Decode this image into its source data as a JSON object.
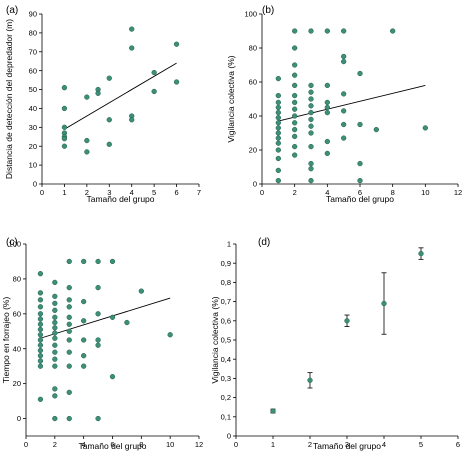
{
  "colors": {
    "point": "#3e8f78",
    "axis": "#000000",
    "line": "#000000"
  },
  "chart_data": [
    {
      "type": "scatter",
      "panel": "(a)",
      "xlabel": "Tamaño del grupo",
      "ylabel": "Distancia de detección del depredador (m)",
      "xlim": [
        0,
        7
      ],
      "ylim": [
        0,
        90
      ],
      "xticks": [
        0,
        1,
        2,
        3,
        4,
        5,
        6,
        7
      ],
      "yticks": [
        0,
        10,
        20,
        30,
        40,
        50,
        60,
        70,
        80,
        90
      ],
      "tick_labels_x": [
        "0",
        "1",
        "2",
        "3",
        "4",
        "5",
        "6",
        "7"
      ],
      "tick_labels_y": [
        "0",
        "10",
        "20",
        "30",
        "40",
        "50",
        "60",
        "70",
        "80",
        "90"
      ],
      "points": [
        [
          1,
          51
        ],
        [
          1,
          40
        ],
        [
          1,
          30
        ],
        [
          1,
          27
        ],
        [
          1,
          25
        ],
        [
          1,
          24
        ],
        [
          1,
          20
        ],
        [
          2,
          46
        ],
        [
          2,
          23
        ],
        [
          2,
          17
        ],
        [
          2.5,
          50
        ],
        [
          2.5,
          48
        ],
        [
          3,
          56
        ],
        [
          3,
          34
        ],
        [
          3,
          21
        ],
        [
          4,
          82
        ],
        [
          4,
          72
        ],
        [
          4,
          36
        ],
        [
          4,
          34
        ],
        [
          5,
          59
        ],
        [
          5,
          49
        ],
        [
          6,
          74
        ],
        [
          6,
          54
        ]
      ],
      "trend": [
        [
          1,
          29
        ],
        [
          6,
          64
        ]
      ]
    },
    {
      "type": "scatter",
      "panel": "(b)",
      "xlabel": "Tamaño del grupo",
      "ylabel": "Vigilancia colectiva (%)",
      "xlim": [
        0,
        12
      ],
      "ylim": [
        0,
        100
      ],
      "xticks": [
        0,
        2,
        4,
        6,
        8,
        10,
        12
      ],
      "yticks": [
        0,
        20,
        40,
        60,
        80,
        100
      ],
      "tick_labels_x": [
        "0",
        "2",
        "4",
        "6",
        "8",
        "10",
        "12"
      ],
      "tick_labels_y": [
        "0",
        "20",
        "40",
        "60",
        "80",
        "100"
      ],
      "points": [
        [
          1,
          62
        ],
        [
          1,
          52
        ],
        [
          1,
          48
        ],
        [
          1,
          45
        ],
        [
          1,
          42
        ],
        [
          1,
          39
        ],
        [
          1,
          36
        ],
        [
          1,
          33
        ],
        [
          1,
          30
        ],
        [
          1,
          27
        ],
        [
          1,
          24
        ],
        [
          1,
          20
        ],
        [
          1,
          15
        ],
        [
          1,
          8
        ],
        [
          1,
          2
        ],
        [
          2,
          90
        ],
        [
          2,
          80
        ],
        [
          2,
          70
        ],
        [
          2,
          64
        ],
        [
          2,
          58
        ],
        [
          2,
          52
        ],
        [
          2,
          48
        ],
        [
          2,
          44
        ],
        [
          2,
          40
        ],
        [
          2,
          36
        ],
        [
          2,
          32
        ],
        [
          2,
          28
        ],
        [
          2,
          22
        ],
        [
          2,
          17
        ],
        [
          3,
          90
        ],
        [
          3,
          58
        ],
        [
          3,
          54
        ],
        [
          3,
          50
        ],
        [
          3,
          46
        ],
        [
          3,
          42
        ],
        [
          3,
          38
        ],
        [
          3,
          34
        ],
        [
          3,
          30
        ],
        [
          3,
          22
        ],
        [
          3,
          12
        ],
        [
          3,
          9
        ],
        [
          3,
          2
        ],
        [
          4,
          90
        ],
        [
          4,
          58
        ],
        [
          4,
          48
        ],
        [
          4,
          45
        ],
        [
          4,
          42
        ],
        [
          4,
          25
        ],
        [
          4,
          18
        ],
        [
          5,
          90
        ],
        [
          5,
          75
        ],
        [
          5,
          72
        ],
        [
          5,
          53
        ],
        [
          5,
          43
        ],
        [
          5,
          35
        ],
        [
          5,
          27
        ],
        [
          6,
          65
        ],
        [
          6,
          35
        ],
        [
          6,
          12
        ],
        [
          6,
          2
        ],
        [
          7,
          32
        ],
        [
          8,
          90
        ],
        [
          10,
          33
        ]
      ],
      "trend": [
        [
          1,
          37
        ],
        [
          10,
          58
        ]
      ]
    },
    {
      "type": "scatter",
      "panel": "(c)",
      "xlabel": "Tamaño del grupo",
      "ylabel": "Tiempo en forrajeo (%)",
      "xlim": [
        0,
        12
      ],
      "ylim": [
        -10,
        100
      ],
      "xticks": [
        0,
        2,
        4,
        6,
        8,
        10,
        12
      ],
      "yticks": [
        0,
        20,
        40,
        60,
        80,
        100
      ],
      "tick_labels_x": [
        "0",
        "2",
        "4",
        "6",
        "8",
        "10",
        "12"
      ],
      "tick_labels_y": [
        "0",
        "20",
        "40",
        "60",
        "80",
        "100"
      ],
      "points": [
        [
          1,
          83
        ],
        [
          1,
          72
        ],
        [
          1,
          68
        ],
        [
          1,
          64
        ],
        [
          1,
          60
        ],
        [
          1,
          57
        ],
        [
          1,
          54
        ],
        [
          1,
          51
        ],
        [
          1,
          48
        ],
        [
          1,
          45
        ],
        [
          1,
          42
        ],
        [
          1,
          39
        ],
        [
          1,
          36
        ],
        [
          1,
          33
        ],
        [
          1,
          30
        ],
        [
          1,
          11
        ],
        [
          2,
          78
        ],
        [
          2,
          70
        ],
        [
          2,
          66
        ],
        [
          2,
          62
        ],
        [
          2,
          58
        ],
        [
          2,
          55
        ],
        [
          2,
          52
        ],
        [
          2,
          49
        ],
        [
          2,
          46
        ],
        [
          2,
          42
        ],
        [
          2,
          38
        ],
        [
          2,
          34
        ],
        [
          2,
          30
        ],
        [
          2,
          17
        ],
        [
          2,
          13
        ],
        [
          2,
          0
        ],
        [
          3,
          90
        ],
        [
          3,
          75
        ],
        [
          3,
          68
        ],
        [
          3,
          64
        ],
        [
          3,
          58
        ],
        [
          3,
          54
        ],
        [
          3,
          50
        ],
        [
          3,
          45
        ],
        [
          3,
          38
        ],
        [
          3,
          30
        ],
        [
          3,
          15
        ],
        [
          3,
          0
        ],
        [
          4,
          90
        ],
        [
          4,
          67
        ],
        [
          4,
          56
        ],
        [
          4,
          45
        ],
        [
          4,
          36
        ],
        [
          4,
          30
        ],
        [
          5,
          90
        ],
        [
          5,
          75
        ],
        [
          5,
          60
        ],
        [
          5,
          45
        ],
        [
          5,
          42
        ],
        [
          5,
          0
        ],
        [
          6,
          90
        ],
        [
          6,
          58
        ],
        [
          6,
          24
        ],
        [
          7,
          55
        ],
        [
          8,
          73
        ],
        [
          10,
          48
        ]
      ],
      "trend": [
        [
          1,
          46
        ],
        [
          10,
          69
        ]
      ]
    },
    {
      "type": "scatter",
      "panel": "(d)",
      "xlabel": "Tamaño del grupo",
      "ylabel": "Vigilancia colectiva (%)",
      "xlim": [
        0,
        6
      ],
      "ylim": [
        0,
        1
      ],
      "xticks": [
        0,
        1,
        2,
        3,
        4,
        5,
        6
      ],
      "yticks": [
        0,
        0.1,
        0.2,
        0.3,
        0.4,
        0.5,
        0.6,
        0.7,
        0.8,
        0.9,
        1
      ],
      "tick_labels_x": [
        "0",
        "1",
        "2",
        "3",
        "4",
        "5",
        "6"
      ],
      "tick_labels_y": [
        "0",
        "0,1",
        "0,2",
        "0,3",
        "0,4",
        "0,5",
        "0,6",
        "0,7",
        "0,8",
        "0,9",
        "1"
      ],
      "points": [
        [
          1,
          0.13
        ],
        [
          2,
          0.29
        ],
        [
          3,
          0.6
        ],
        [
          4,
          0.69
        ],
        [
          5,
          0.95
        ]
      ],
      "errors": [
        [
          1,
          0.12,
          0.14
        ],
        [
          2,
          0.25,
          0.33
        ],
        [
          3,
          0.57,
          0.63
        ],
        [
          4,
          0.53,
          0.85
        ],
        [
          5,
          0.92,
          0.98
        ]
      ]
    }
  ]
}
